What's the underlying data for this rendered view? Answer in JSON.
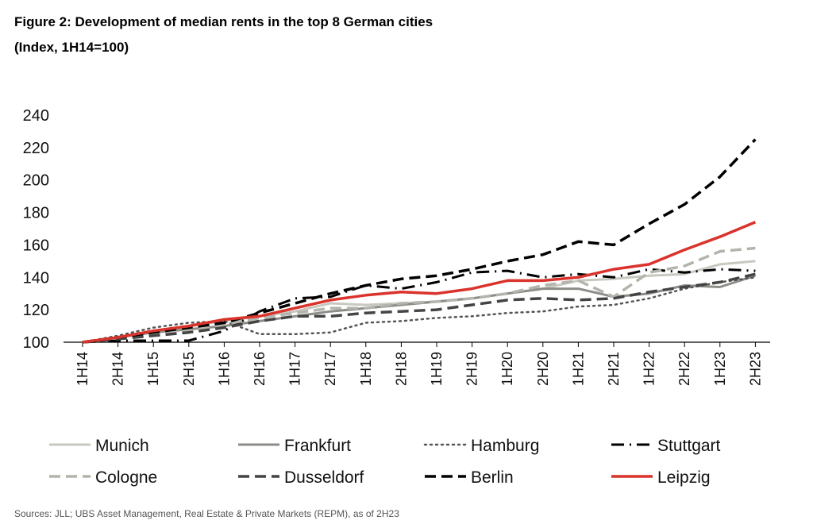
{
  "title": "Figure 2: Development of median rents in the top 8 German cities",
  "subtitle": "(Index, 1H14=100)",
  "source": "Sources: JLL; UBS Asset Management, Real Estate & Private Markets (REPM), as of 2H23",
  "chart_data": {
    "type": "line",
    "title": "Figure 2: Development of median rents in the top 8 German cities",
    "subtitle": "(Index, 1H14=100)",
    "xlabel": "",
    "ylabel": "",
    "ylim": [
      100,
      240
    ],
    "yticks": [
      100,
      120,
      140,
      160,
      180,
      200,
      220,
      240
    ],
    "grid": false,
    "legend_position": "bottom",
    "categories": [
      "1H14",
      "2H14",
      "1H15",
      "2H15",
      "1H16",
      "2H16",
      "1H17",
      "2H17",
      "1H18",
      "2H18",
      "1H19",
      "2H19",
      "1H20",
      "2H20",
      "1H21",
      "2H21",
      "1H22",
      "2H22",
      "1H23",
      "2H23"
    ],
    "series": [
      {
        "name": "Munich",
        "color": "#c8c8c0",
        "dash": "solid",
        "width": 3,
        "values": [
          100,
          103,
          106,
          110,
          113,
          116,
          119,
          124,
          123,
          124,
          125,
          127,
          130,
          133,
          138,
          139,
          141,
          142,
          148,
          150
        ]
      },
      {
        "name": "Frankfurt",
        "color": "#8c8c88",
        "dash": "solid",
        "width": 3,
        "values": [
          100,
          103,
          106,
          108,
          110,
          113,
          116,
          119,
          121,
          123,
          125,
          127,
          130,
          133,
          133,
          128,
          130,
          135,
          134,
          141
        ]
      },
      {
        "name": "Hamburg",
        "color": "#555555",
        "dash": "dotted",
        "width": 2.5,
        "values": [
          100,
          104,
          109,
          112,
          113,
          105,
          105,
          106,
          112,
          113,
          115,
          116,
          118,
          119,
          122,
          123,
          127,
          133,
          137,
          140
        ]
      },
      {
        "name": "Stuttgart",
        "color": "#000000",
        "dash": "longdot",
        "width": 3,
        "values": [
          100,
          101,
          101,
          101,
          107,
          119,
          127,
          128,
          135,
          133,
          137,
          143,
          144,
          140,
          142,
          140,
          145,
          143,
          145,
          144
        ]
      },
      {
        "name": "Cologne",
        "color": "#b4b4ac",
        "dash": "dashed",
        "width": 3.5,
        "values": [
          100,
          103,
          105,
          107,
          111,
          115,
          118,
          121,
          121,
          124,
          125,
          127,
          130,
          135,
          138,
          128,
          143,
          147,
          156,
          158
        ]
      },
      {
        "name": "Dusseldorf",
        "color": "#444444",
        "dash": "dashed",
        "width": 3.5,
        "values": [
          100,
          102,
          104,
          106,
          109,
          113,
          116,
          116,
          118,
          119,
          120,
          123,
          126,
          127,
          126,
          127,
          131,
          134,
          137,
          142
        ]
      },
      {
        "name": "Berlin",
        "color": "#000000",
        "dash": "dashed",
        "width": 3.5,
        "values": [
          100,
          103,
          106,
          109,
          112,
          118,
          124,
          130,
          135,
          139,
          141,
          145,
          150,
          154,
          162,
          160,
          173,
          185,
          202,
          225
        ]
      },
      {
        "name": "Leipzig",
        "color": "#d9332b",
        "dash": "solid",
        "width": 3.5,
        "values": [
          100,
          103,
          107,
          110,
          114,
          116,
          121,
          126,
          129,
          131,
          130,
          133,
          138,
          138,
          140,
          145,
          148,
          157,
          165,
          174
        ]
      }
    ]
  }
}
